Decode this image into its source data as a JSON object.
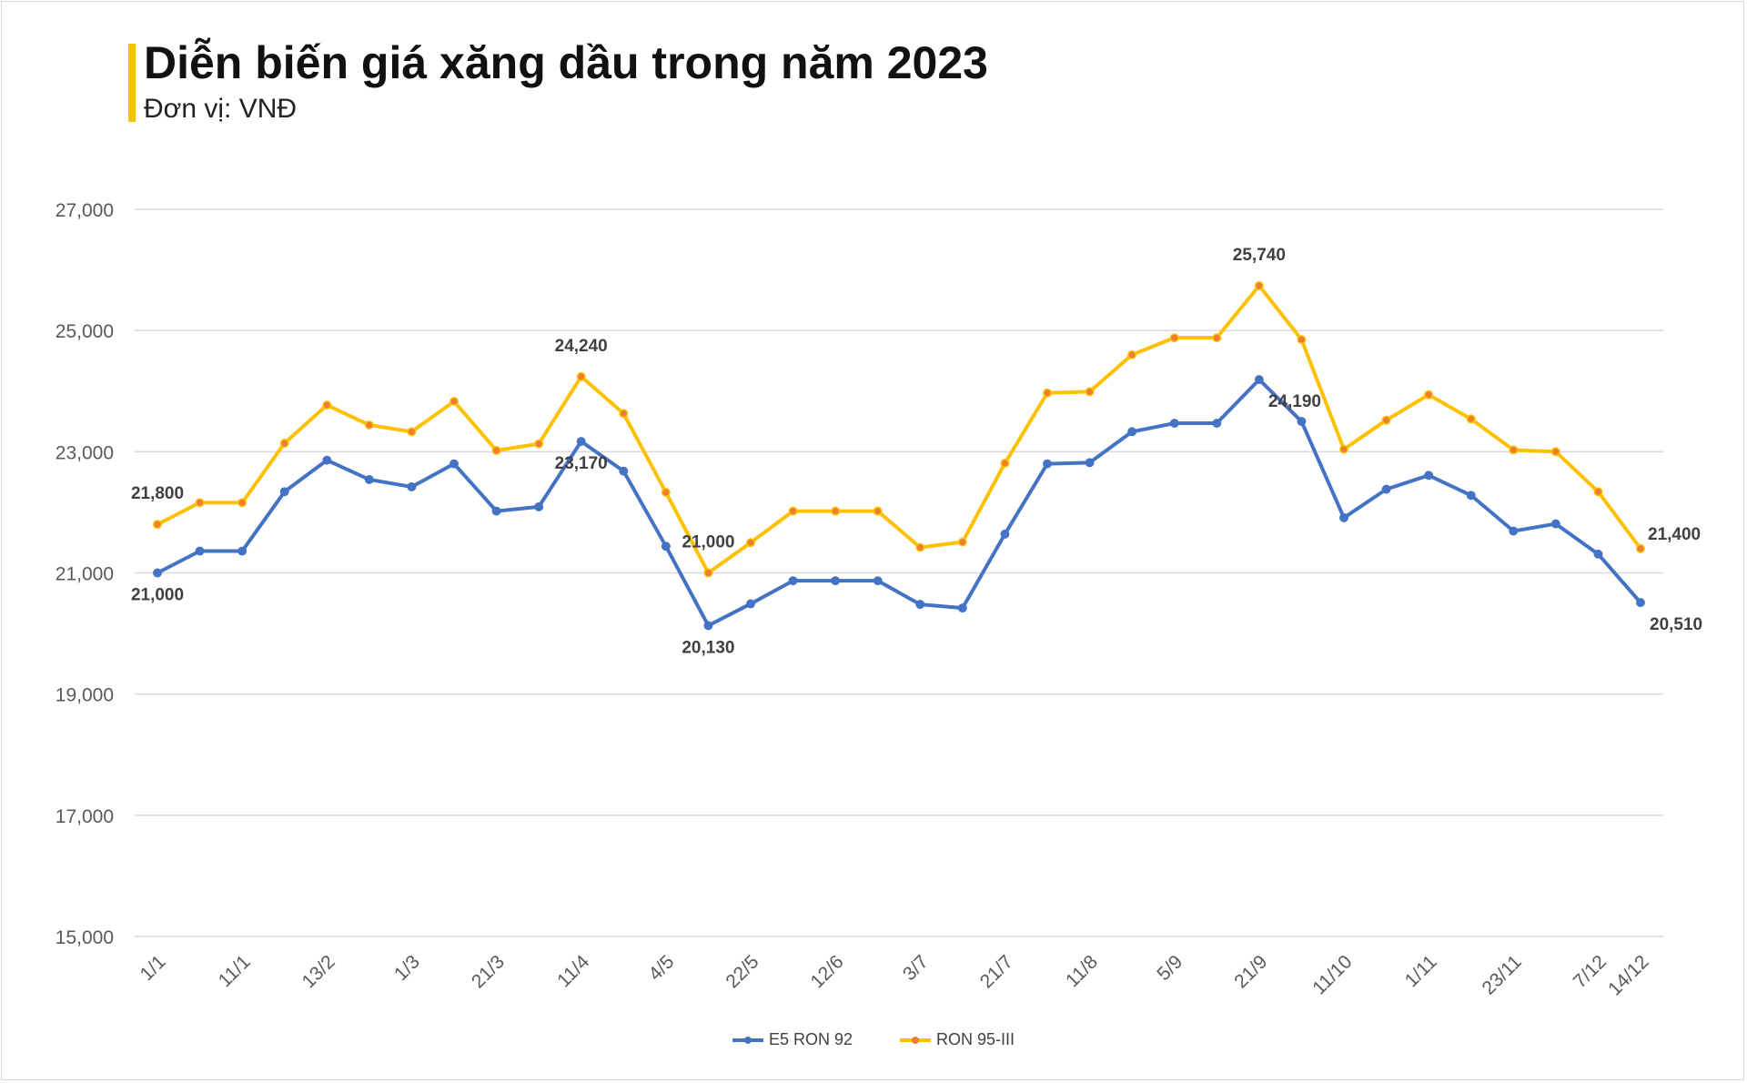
{
  "header": {
    "title": "Diễn biến giá xăng dầu trong năm 2023",
    "subtitle": "Đơn vị: VNĐ"
  },
  "chart_data": {
    "type": "line",
    "title": "Diễn biến giá xăng dầu trong năm 2023",
    "subtitle": "Đơn vị: VNĐ",
    "xlabel": "",
    "ylabel": "",
    "ylim": [
      15000,
      27000
    ],
    "yticks": [
      "15,000",
      "17,000",
      "19,000",
      "21,000",
      "23,000",
      "25,000",
      "27,000"
    ],
    "ytick_values": [
      15000,
      17000,
      19000,
      21000,
      23000,
      25000,
      27000
    ],
    "grid": "horizontal",
    "legend_position": "bottom",
    "xtick_labels": [
      "1/1",
      "11/1",
      "13/2",
      "1/3",
      "21/3",
      "11/4",
      "4/5",
      "22/5",
      "12/6",
      "3/7",
      "21/7",
      "11/8",
      "5/9",
      "21/9",
      "11/10",
      "1/11",
      "23/11",
      "7/12",
      "14/12"
    ],
    "xtick_indices": [
      0,
      2,
      4,
      6,
      8,
      10,
      12,
      14,
      16,
      18,
      20,
      22,
      24,
      26,
      28,
      30,
      32,
      34,
      35
    ],
    "point_count": 36,
    "series": [
      {
        "name": "E5 RON 92",
        "color": "#4472c4",
        "values": [
          21000,
          21360,
          21360,
          22340,
          22860,
          22540,
          22420,
          22800,
          22020,
          22090,
          23170,
          22680,
          21440,
          20130,
          20490,
          20870,
          20870,
          20870,
          20480,
          20420,
          21640,
          22800,
          22820,
          23330,
          23470,
          23470,
          24190,
          23500,
          21910,
          22380,
          22610,
          22280,
          21690,
          21810,
          21310,
          20510
        ]
      },
      {
        "name": "RON 95-III",
        "color": "#ffc000",
        "values": [
          21800,
          22160,
          22160,
          23140,
          23770,
          23440,
          23330,
          23830,
          23020,
          23130,
          24240,
          23630,
          22330,
          21000,
          21500,
          22020,
          22020,
          22020,
          21420,
          21510,
          22810,
          23970,
          23990,
          24600,
          24880,
          24880,
          25740,
          24850,
          23040,
          23520,
          23940,
          23540,
          23030,
          23000,
          22340,
          21400
        ]
      }
    ],
    "data_labels": [
      {
        "series": 0,
        "index": 0,
        "text": "21,000",
        "pos": "below"
      },
      {
        "series": 1,
        "index": 0,
        "text": "21,800",
        "pos": "above"
      },
      {
        "series": 1,
        "index": 10,
        "text": "24,240",
        "pos": "above"
      },
      {
        "series": 0,
        "index": 10,
        "text": "23,170",
        "pos": "below"
      },
      {
        "series": 1,
        "index": 13,
        "text": "21,000",
        "pos": "above"
      },
      {
        "series": 0,
        "index": 13,
        "text": "20,130",
        "pos": "below"
      },
      {
        "series": 1,
        "index": 26,
        "text": "25,740",
        "pos": "above"
      },
      {
        "series": 0,
        "index": 26,
        "text": "24,190",
        "pos": "below-right"
      },
      {
        "series": 1,
        "index": 35,
        "text": "21,400",
        "pos": "right"
      },
      {
        "series": 0,
        "index": 35,
        "text": "20,510",
        "pos": "below-right"
      }
    ]
  }
}
